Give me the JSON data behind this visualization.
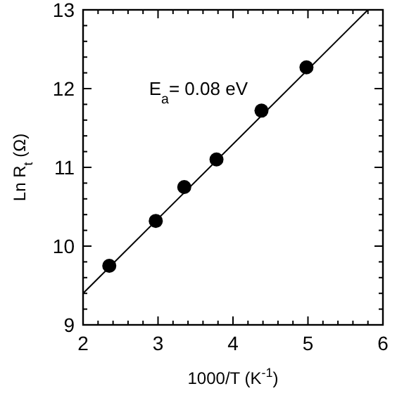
{
  "chart_data": {
    "type": "scatter",
    "xlabel": "1000/T (K$^{-1}$)",
    "ylabel": "Ln R$_{t}$ (Ω)",
    "annotations": [
      "E$_{a}$= 0.08 eV"
    ],
    "xlim": [
      2,
      6
    ],
    "ylim": [
      9,
      13
    ],
    "xticks": [
      2,
      {
        "value": 2.2,
        "label": null
      },
      {
        "value": 2.4,
        "label": null
      },
      {
        "value": 2.6,
        "label": null
      },
      {
        "value": 2.8,
        "label": null
      },
      3,
      {
        "value": 3.2,
        "label": null
      },
      {
        "value": 3.4,
        "label": null
      },
      {
        "value": 3.6,
        "label": null
      },
      {
        "value": 3.8,
        "label": null
      },
      4,
      {
        "value": 4.2,
        "label": null
      },
      {
        "value": 4.4,
        "label": null
      },
      {
        "value": 4.6,
        "label": null
      },
      {
        "value": 4.8,
        "label": null
      },
      5,
      {
        "value": 5.2,
        "label": null
      },
      {
        "value": 5.4,
        "label": null
      },
      {
        "value": 5.6,
        "label": null
      },
      {
        "value": 5.8,
        "label": null
      },
      6
    ],
    "yticks": [
      9,
      {
        "value": 9.2,
        "label": null
      },
      {
        "value": 9.4,
        "label": null
      },
      {
        "value": 9.6,
        "label": null
      },
      {
        "value": 9.8,
        "label": null
      },
      10,
      {
        "value": 10.2,
        "label": null
      },
      {
        "value": 10.4,
        "label": null
      },
      {
        "value": 10.6,
        "label": null
      },
      {
        "value": 10.8,
        "label": null
      },
      11,
      {
        "value": 11.2,
        "label": null
      },
      {
        "value": 11.4,
        "label": null
      },
      {
        "value": 11.6,
        "label": null
      },
      {
        "value": 11.8,
        "label": null
      },
      12,
      {
        "value": 12.2,
        "label": null
      },
      {
        "value": 12.4,
        "label": null
      },
      {
        "value": 12.6,
        "label": null
      },
      {
        "value": 12.8,
        "label": null
      },
      13
    ],
    "marker": "circle",
    "grid": false,
    "series": [
      {
        "color": "#000000",
        "x": [
          2.35,
          2.97,
          3.35,
          3.78,
          4.38,
          4.98
        ],
        "values": [
          9.75,
          10.32,
          10.75,
          11.1,
          11.72,
          12.27
        ]
      },
      {
        "type": "line",
        "color": "#000000",
        "marker": "none",
        "x": [
          2,
          5.8
        ],
        "values": [
          9.4,
          13
        ]
      }
    ]
  }
}
